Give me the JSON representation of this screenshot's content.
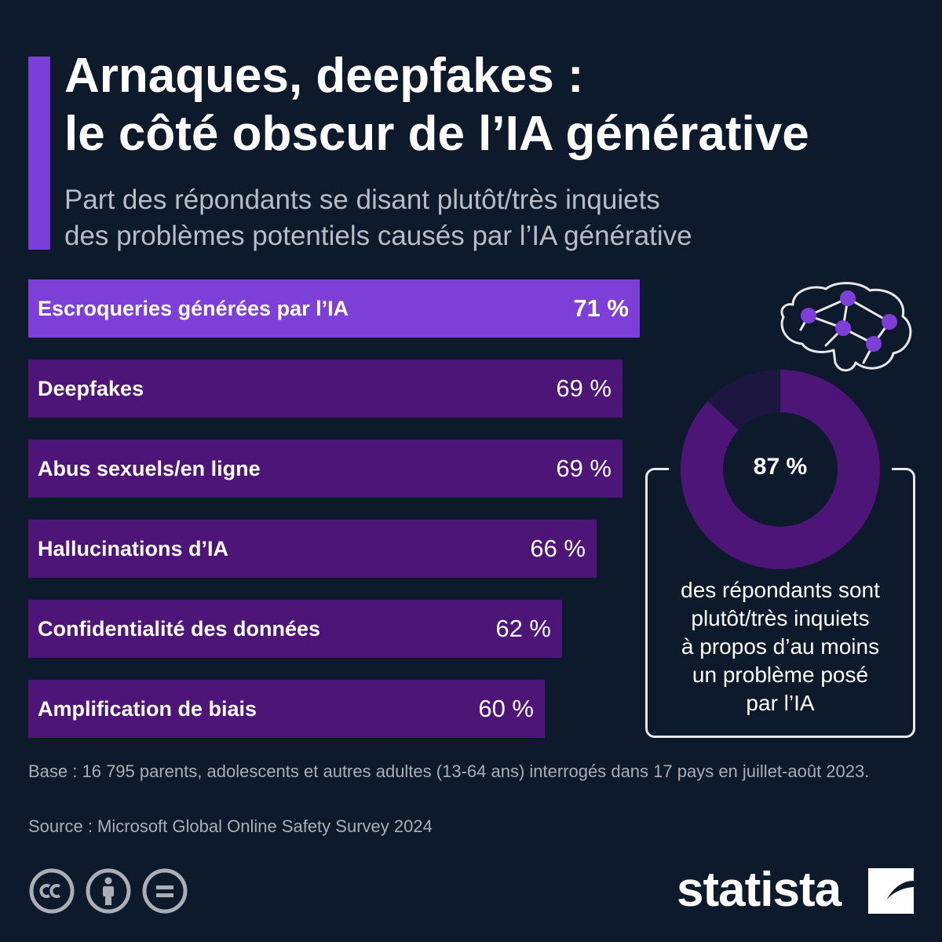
{
  "header": {
    "title_line1": "Arnaques, deepfakes :",
    "title_line2": "le côté obscur de l’IA générative",
    "subtitle_line1": "Part des répondants se disant plutôt/très inquiets",
    "subtitle_line2": "des problèmes potentiels causés par l’IA générative"
  },
  "chart_data": {
    "type": "bar",
    "orientation": "horizontal",
    "categories": [
      "Escroqueries générées par l’IA",
      "Deepfakes",
      "Abus sexuels/en ligne",
      "Hallucinations d’IA",
      "Confidentialité des données",
      "Amplification de biais"
    ],
    "values": [
      71,
      69,
      69,
      66,
      62,
      60
    ],
    "value_labels": [
      "71 %",
      "69 %",
      "69 %",
      "66 %",
      "62 %",
      "60 %"
    ],
    "unit": "%",
    "highlight_index": 0,
    "colors": {
      "highlight": "#7e3fd8",
      "default": "#4e1578"
    }
  },
  "callout": {
    "donut_value": 87,
    "donut_label": "87 %",
    "text_lines": [
      "des répondants sont",
      "plutôt/très inquiets",
      "à propos d’au moins",
      "un problème posé",
      "par l’IA"
    ],
    "colors": {
      "ring": "#4e1578",
      "remainder": "#1c1640",
      "dots": "#7e3fd8"
    }
  },
  "footer": {
    "note": "Base : 16 795 parents, adolescents et autres adultes (13-64 ans) interrogés dans 17 pays en juillet-août 2023.",
    "source": "Source : Microsoft Global Online Safety Survey 2024",
    "logo": "statista",
    "license_icons": [
      "cc-icon",
      "attribution-icon",
      "no-derivatives-icon"
    ]
  },
  "colors": {
    "background": "#0d1a2b",
    "accent": "#7b3fd9"
  }
}
